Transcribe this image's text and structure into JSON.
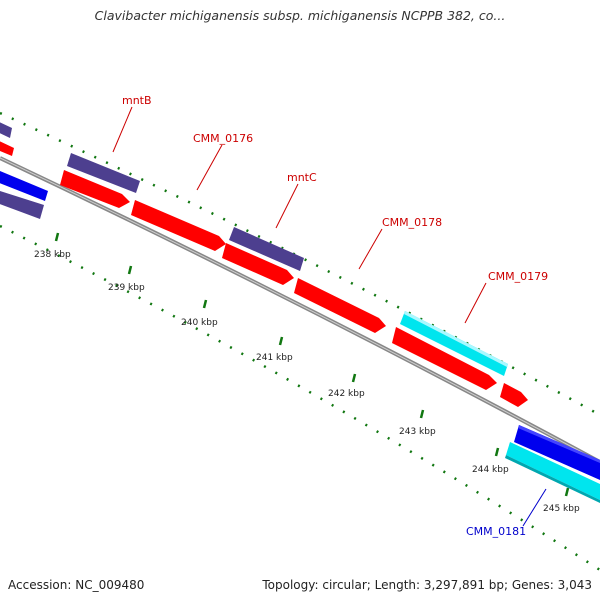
{
  "title": "Clavibacter michiganensis subsp. michiganensis NCPPB 382, co...",
  "footer": {
    "accession": "Accession: NC_009480",
    "topology": "Topology: circular; Length: 3,297,891 bp; Genes: 3,043"
  },
  "ticks": [
    {
      "label": "238 kbp",
      "value": 238
    },
    {
      "label": "239 kbp",
      "value": 239
    },
    {
      "label": "240 kbp",
      "value": 240
    },
    {
      "label": "241 kbp",
      "value": 241
    },
    {
      "label": "242 kbp",
      "value": 242
    },
    {
      "label": "243 kbp",
      "value": 243
    },
    {
      "label": "244 kbp",
      "value": 244
    },
    {
      "label": "245 kbp",
      "value": 245
    }
  ],
  "gene_labels": [
    {
      "name": "mntB",
      "color": "#cc0000"
    },
    {
      "name": "CMM_0176",
      "color": "#cc0000"
    },
    {
      "name": "mntC",
      "color": "#cc0000"
    },
    {
      "name": "CMM_0178",
      "color": "#cc0000"
    },
    {
      "name": "CMM_0179",
      "color": "#cc0000"
    },
    {
      "name": "CMM_0181",
      "color": "#0000cc"
    }
  ],
  "colors": {
    "cds": "#ff0000",
    "gene": "#4d3f8f",
    "blue": "#0000ee",
    "cyan": "#00e5ee",
    "backbone": "#888888",
    "ticks": "#117711"
  }
}
